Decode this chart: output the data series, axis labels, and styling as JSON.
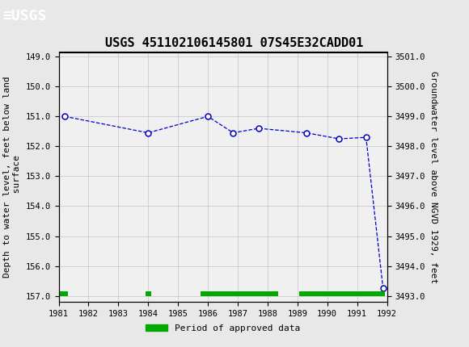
{
  "title": "USGS 451102106145801 07S45E32CADD01",
  "xlabel_ticks": [
    1981,
    1982,
    1983,
    1984,
    1985,
    1986,
    1987,
    1988,
    1989,
    1990,
    1991,
    1992
  ],
  "ylabel_left": "Depth to water level, feet below land\n surface",
  "ylabel_right": "Groundwater level above NGVD 1929, feet",
  "yticks_left": [
    149.0,
    150.0,
    151.0,
    152.0,
    153.0,
    154.0,
    155.0,
    156.0,
    157.0
  ],
  "yticks_right": [
    3493.0,
    3494.0,
    3495.0,
    3496.0,
    3497.0,
    3498.0,
    3499.0,
    3500.0,
    3501.0
  ],
  "data_x": [
    1981.2,
    1984.0,
    1986.0,
    1986.85,
    1987.7,
    1989.3,
    1990.4,
    1991.3,
    1991.87
  ],
  "data_y": [
    151.0,
    151.55,
    151.0,
    151.55,
    151.4,
    151.55,
    151.75,
    151.7,
    156.75
  ],
  "line_color": "#0000cc",
  "marker_color": "#0000cc",
  "grid_color": "#cccccc",
  "bg_color": "#f0f0f0",
  "header_bg": "#1a7a3a",
  "approved_bars": [
    {
      "xstart": 1981.0,
      "xend": 1981.3
    },
    {
      "xstart": 1983.9,
      "xend": 1984.1
    },
    {
      "xstart": 1985.75,
      "xend": 1988.35
    },
    {
      "xstart": 1989.05,
      "xend": 1991.92
    }
  ],
  "approved_bar_color": "#00aa00",
  "legend_label": "Period of approved data",
  "title_fontsize": 11,
  "tick_fontsize": 7.5,
  "label_fontsize": 8
}
